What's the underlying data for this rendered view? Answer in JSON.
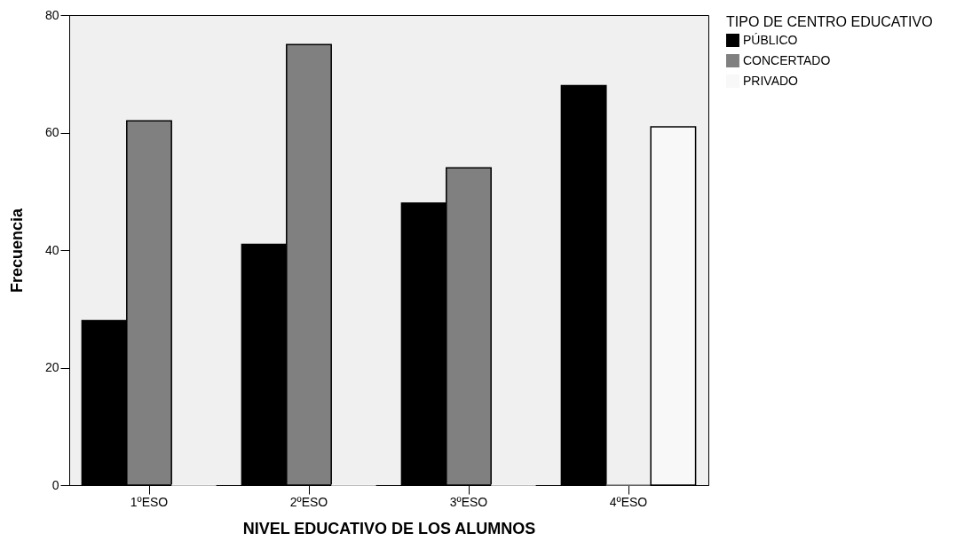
{
  "chart_data": {
    "type": "bar",
    "xlabel": "NIVEL EDUCATIVO DE LOS ALUMNOS",
    "ylabel": "Frecuencia",
    "legend_title": "TIPO DE CENTRO EDUCATIVO",
    "legend": "top right",
    "grid": false,
    "categories": [
      "1ºESO",
      "2ºESO",
      "3ºESO",
      "4ºESO"
    ],
    "ylim": [
      0,
      80
    ],
    "yticks": [
      0,
      20,
      40,
      60,
      80
    ],
    "series": [
      {
        "name": "PÚBLICO",
        "color": "#000000",
        "values": [
          28,
          41,
          48,
          68
        ]
      },
      {
        "name": "CONCERTADO",
        "color": "#808080",
        "values": [
          62,
          75,
          54,
          0
        ]
      },
      {
        "name": "PRIVADO",
        "color": "#f8f8f8",
        "values": [
          0,
          0,
          0,
          61
        ]
      }
    ]
  }
}
